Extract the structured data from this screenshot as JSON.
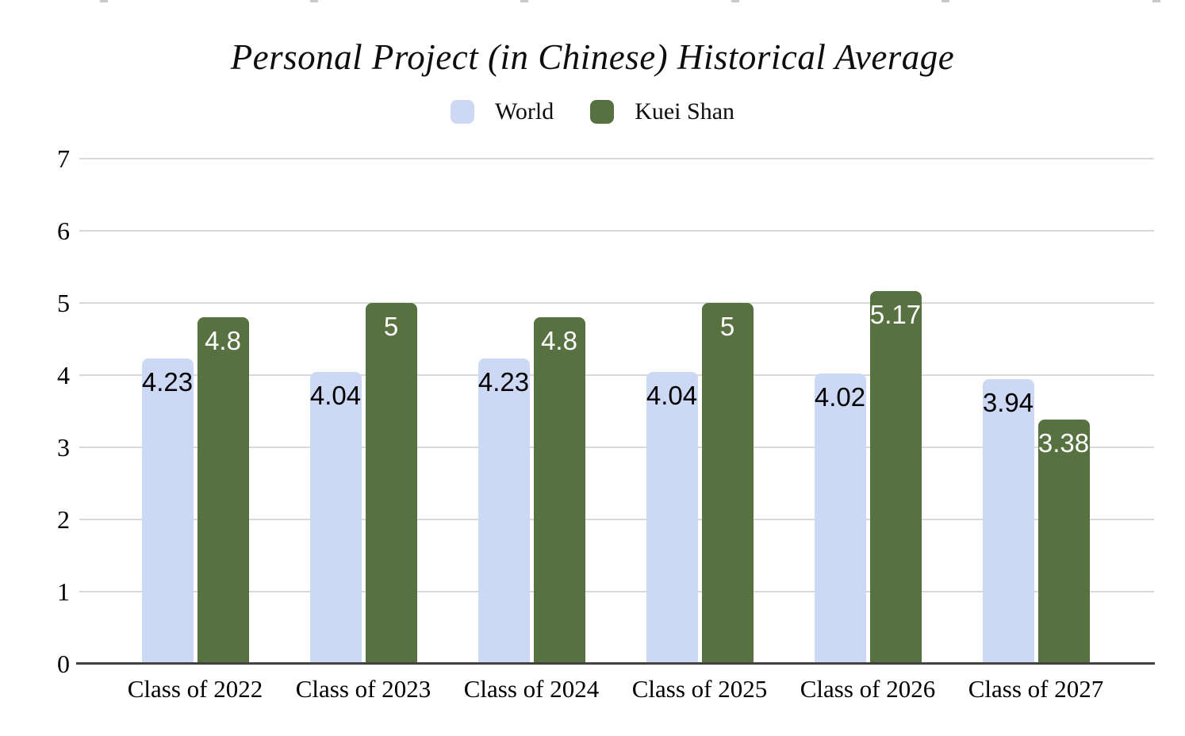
{
  "chart_data": {
    "type": "bar",
    "title": "Personal Project (in Chinese) Historical Average",
    "categories": [
      "Class of 2022",
      "Class of 2023",
      "Class of 2024",
      "Class of 2025",
      "Class of 2026",
      "Class of 2027"
    ],
    "series": [
      {
        "name": "World",
        "color": "#cdd9f4",
        "label_color": "#000000",
        "values": [
          4.23,
          4.04,
          4.23,
          4.04,
          4.02,
          3.94
        ],
        "labels": [
          "4.23",
          "4.04",
          "4.23",
          "4.04",
          "4.02",
          "3.94"
        ]
      },
      {
        "name": "Kuei Shan",
        "color": "#587141",
        "label_color": "#ffffff",
        "values": [
          4.8,
          5,
          4.8,
          5,
          5.17,
          3.38
        ],
        "labels": [
          "4.8",
          "5",
          "4.8",
          "5",
          "5.17",
          "3.38"
        ]
      }
    ],
    "xlabel": "",
    "ylabel": "",
    "ylim": [
      0,
      7
    ],
    "yticks": [
      0,
      1,
      2,
      3,
      4,
      5,
      6,
      7
    ],
    "grid": true,
    "legend_position": "top",
    "colors": {
      "gridline": "#d9d9d9",
      "baseline": "#424242",
      "axis_text": "#000000",
      "title_text": "#0d0d0d",
      "background": "#ffffff"
    }
  }
}
